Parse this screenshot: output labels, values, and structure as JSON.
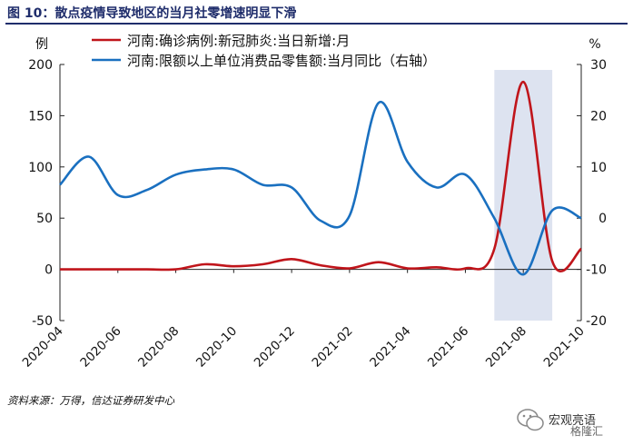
{
  "figure": {
    "title": "图 10：散点疫情导致地区的当月社零增速明显下滑",
    "source": "资料来源：万得，信达证券研发中心"
  },
  "watermark": {
    "brand": "宏观亮语",
    "sub": "格隆汇"
  },
  "chart_data": {
    "type": "line",
    "title": "",
    "x_ticks": [
      "2020-04",
      "2020-06",
      "2020-08",
      "2020-10",
      "2020-12",
      "2021-02",
      "2021-04",
      "2021-06",
      "2021-08",
      "2021-10"
    ],
    "left_axis": {
      "label": "例",
      "range": [
        -50,
        200
      ],
      "ticks": [
        -50,
        0,
        50,
        100,
        150,
        200
      ]
    },
    "right_axis": {
      "label": "%",
      "range": [
        -20,
        30
      ],
      "ticks": [
        -20,
        -10,
        0,
        10,
        20,
        30
      ]
    },
    "shaded_region": {
      "from": "2021-07",
      "to": "2021-09",
      "color": "#dde3f0"
    },
    "legend_position": "top",
    "series": [
      {
        "name": "河南:确诊病例:新冠肺炎:当日新增:月",
        "axis": "left",
        "color": "#c0151b",
        "x": [
          "2020-04",
          "2020-05",
          "2020-06",
          "2020-07",
          "2020-08",
          "2020-09",
          "2020-10",
          "2020-11",
          "2020-12",
          "2021-01",
          "2021-02",
          "2021-03",
          "2021-04",
          "2021-05",
          "2021-06",
          "2021-07",
          "2021-08",
          "2021-09",
          "2021-10"
        ],
        "values": [
          0,
          0,
          0,
          0,
          0,
          5,
          3,
          5,
          10,
          4,
          1,
          7,
          1,
          2,
          1,
          20,
          183,
          8,
          20
        ]
      },
      {
        "name": "河南:限额以上单位消费品零售额:当月同比（右轴）",
        "axis": "right",
        "color": "#1a70c0",
        "x": [
          "2020-04",
          "2020-05",
          "2020-06",
          "2020-07",
          "2020-08",
          "2020-09",
          "2020-10",
          "2020-11",
          "2020-12",
          "2021-01",
          "2021-02",
          "2021-03",
          "2021-04",
          "2021-05",
          "2021-06",
          "2021-07",
          "2021-08",
          "2021-09",
          "2021-10"
        ],
        "values": [
          6.5,
          12,
          4.5,
          5.5,
          8.5,
          9.5,
          9.5,
          6.5,
          6,
          -0.5,
          0.5,
          22.5,
          11,
          6,
          8.5,
          0,
          -11,
          1.5,
          0
        ]
      }
    ]
  }
}
